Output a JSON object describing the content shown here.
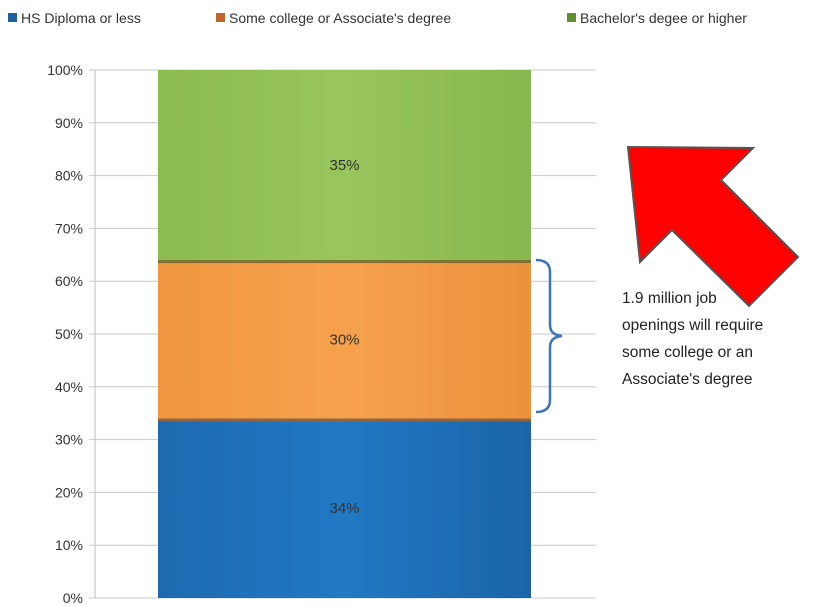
{
  "chart_data": {
    "type": "bar",
    "stacked": true,
    "categories": [
      ""
    ],
    "series": [
      {
        "name": "HS Diploma or less",
        "values": [
          34
        ],
        "label": "34%",
        "color": "#1f6fb5"
      },
      {
        "name": "Some college or Associate's degree",
        "values": [
          30
        ],
        "label": "30%",
        "color": "#f39c45"
      },
      {
        "name": "Bachelor's degee or higher",
        "values": [
          35
        ],
        "label": "35%",
        "color": "#8fbf55"
      }
    ],
    "ylim": [
      0,
      100
    ],
    "yticks": [
      "0%",
      "10%",
      "20%",
      "30%",
      "40%",
      "50%",
      "60%",
      "70%",
      "80%",
      "90%",
      "100%"
    ],
    "grid": true,
    "legend_position": "top",
    "annotation": {
      "lines": [
        "1.9 million job",
        "openings will require",
        "some college or an",
        "Associate's degree"
      ],
      "arrow_color": "#ff0000",
      "bracket_color": "#3d74b8"
    }
  }
}
